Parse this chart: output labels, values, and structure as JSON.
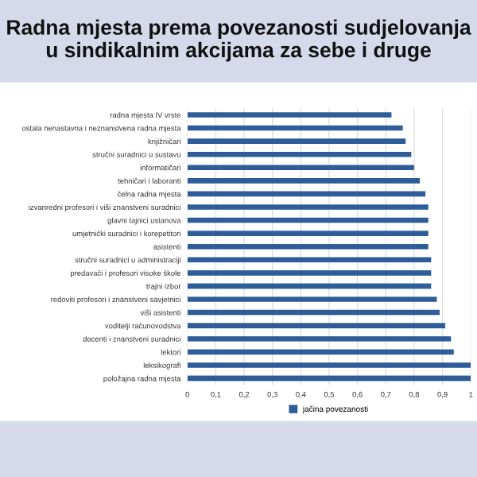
{
  "chart_data": {
    "type": "bar",
    "orientation": "horizontal",
    "title": "Radna mjesta prema povezanosti sudjelovanja u sindikalnim akcijama za sebe i druge",
    "categories": [
      "radna mjesta IV vrste",
      "ostala nenastavna i neznanstvena radna mjesta",
      "knjižničari",
      "stručni suradnici u sustavu",
      "informatičari",
      "tehničari i laboranti",
      "čelna radna mjesta",
      "izvanredni profesori i viši znanstveni suradnici",
      "glavni tajnici ustanova",
      "umjetnički suradnici i korepetitori",
      "asistenti",
      "stručni suradnici u administraciji",
      "predavači i profesori visoke škole",
      "trajni izbor",
      "redoviti profesori i znanstveni savjetnici",
      "viši asistenti",
      "voditelji računovodstva",
      "docenti i znanstveni suradnici",
      "lektori",
      "leksikografi",
      "položajna radna mjesta"
    ],
    "series": [
      {
        "name": "jačina povezanosti",
        "color": "#2e5d99",
        "values": [
          0.72,
          0.76,
          0.77,
          0.79,
          0.8,
          0.82,
          0.84,
          0.85,
          0.85,
          0.85,
          0.85,
          0.86,
          0.86,
          0.86,
          0.88,
          0.89,
          0.91,
          0.93,
          0.94,
          1.0,
          1.0
        ]
      }
    ],
    "xlim": [
      0,
      1
    ],
    "xticks": [
      0,
      {
        "value": 0.1,
        "label": "0,1"
      },
      {
        "value": 0.2,
        "label": "0,2"
      },
      {
        "value": 0.3,
        "label": "0,3"
      },
      {
        "value": 0.4,
        "label": "0,4"
      },
      {
        "value": 0.5,
        "label": "0,5"
      },
      {
        "value": 0.6,
        "label": "0,6"
      },
      {
        "value": 0.7,
        "label": "0,7"
      },
      {
        "value": 0.8,
        "label": "0,8"
      },
      {
        "value": 0.9,
        "label": "0,9"
      },
      1
    ],
    "grid": "x",
    "legend": "bottom"
  }
}
